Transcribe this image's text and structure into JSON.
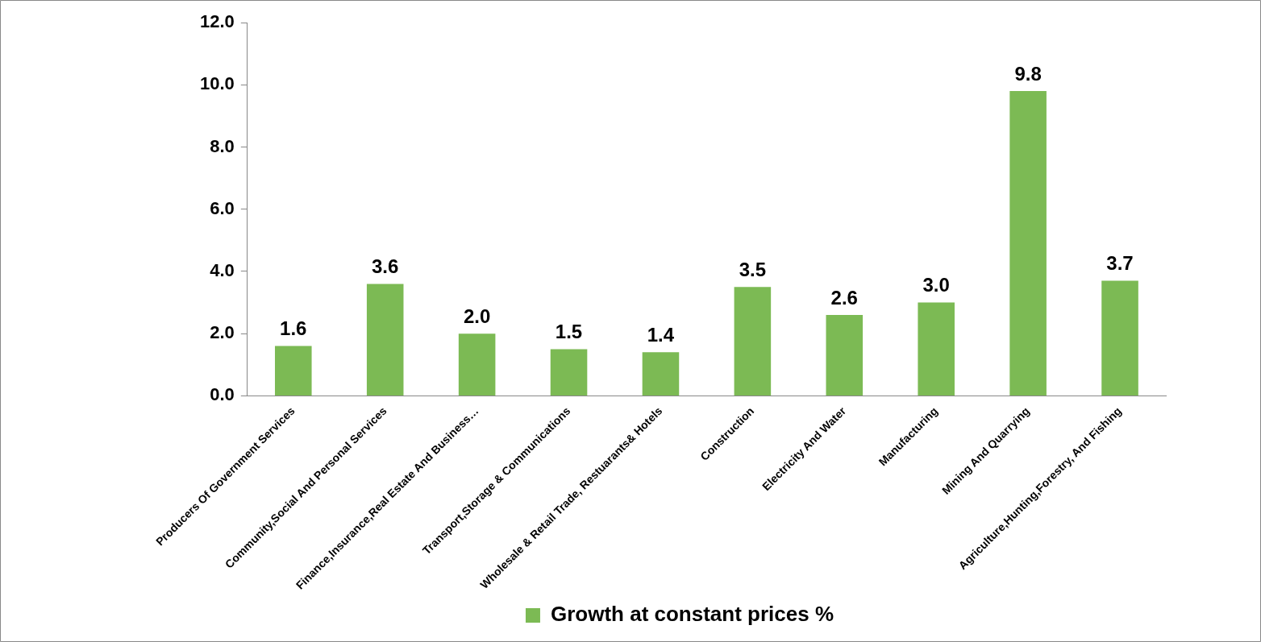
{
  "chart_data": {
    "type": "bar",
    "categories": [
      "Producers Of Government Services",
      "Community,Social And Personal Services",
      "Finance,Insurance,Real Estate And Business…",
      "Transport,Storage & Communications",
      "Wholesale & Retail Trade, Restuarants& Hotels",
      "Construction",
      "Electricity And Water",
      "Manufacturing",
      "Mining And Quarrying",
      "Agriculture,Hunting,Forestry, And Fishing"
    ],
    "series": [
      {
        "name": "Growth at constant prices %",
        "color": "#7cba54",
        "values": [
          1.6,
          3.6,
          2.0,
          1.5,
          1.4,
          3.5,
          2.6,
          3.0,
          9.8,
          3.7
        ],
        "value_labels": [
          "1.6",
          "3.6",
          "2.0",
          "1.5",
          "1.4",
          "3.5",
          "2.6",
          "3.0",
          "9.8",
          "3.7"
        ]
      }
    ],
    "ylim": [
      0,
      12
    ],
    "yticks": [
      {
        "value": 0,
        "label": "0.0"
      },
      {
        "value": 2,
        "label": "2.0"
      },
      {
        "value": 4,
        "label": "4.0"
      },
      {
        "value": 6,
        "label": "6.0"
      },
      {
        "value": 8,
        "label": "8.0"
      },
      {
        "value": 10,
        "label": "10.0"
      },
      {
        "value": 12,
        "label": "12.0"
      }
    ],
    "grid": false,
    "legend": "bottom"
  }
}
